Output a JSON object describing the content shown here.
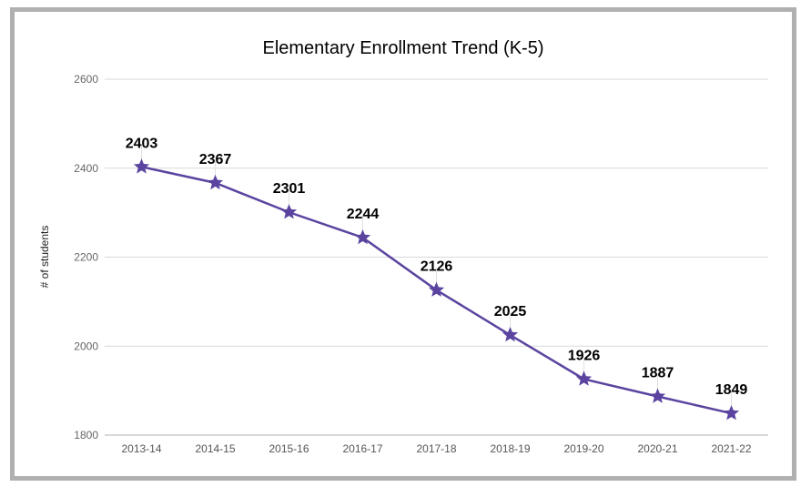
{
  "chart_data": {
    "type": "line",
    "title": "Elementary Enrollment Trend (K-5)",
    "xlabel": "",
    "ylabel": "# of students",
    "categories": [
      "2013-14",
      "2014-15",
      "2015-16",
      "2016-17",
      "2017-18",
      "2018-19",
      "2019-20",
      "2020-21",
      "2021-22"
    ],
    "values": [
      2403,
      2367,
      2301,
      2244,
      2126,
      2025,
      1926,
      1887,
      1849
    ],
    "ylim": [
      1800,
      2600
    ],
    "yticks": [
      1800,
      2000,
      2200,
      2400,
      2600
    ],
    "grid": true,
    "marker": "star",
    "data_labels": true,
    "legend": "none",
    "colors": {
      "line": "#5b44a0",
      "grid": "#d9d9d9",
      "frame": "#b0b0b0"
    }
  }
}
